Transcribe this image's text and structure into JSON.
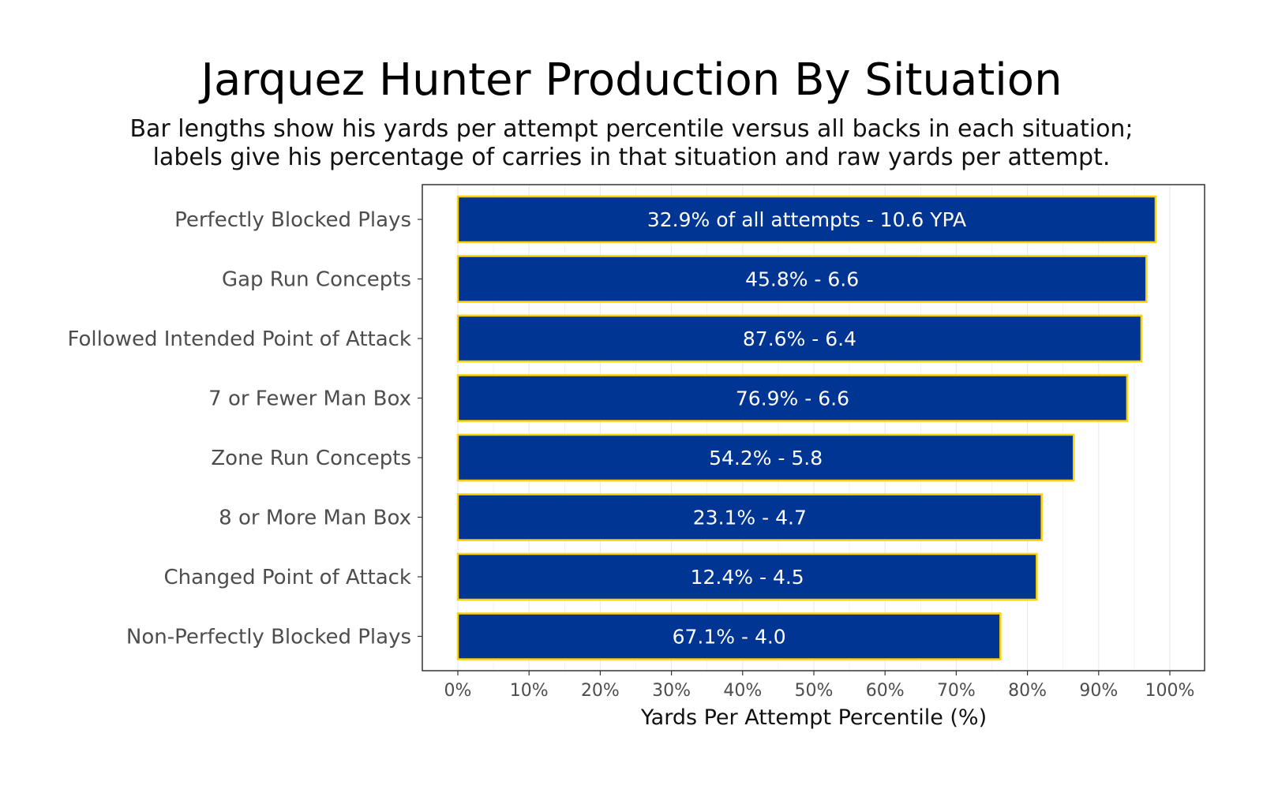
{
  "chart_data": {
    "type": "bar",
    "orientation": "horizontal",
    "title": "Jarquez Hunter Production By Situation",
    "subtitle": [
      "Bar lengths show his yards per attempt percentile versus all backs in each situation;",
      "labels give his percentage of carries in that situation and raw yards per attempt."
    ],
    "xlabel": "Yards Per Attempt Percentile (%)",
    "ylabel": "",
    "xlim": [
      0,
      100
    ],
    "x_ticks": [
      "0%",
      "10%",
      "20%",
      "30%",
      "40%",
      "50%",
      "60%",
      "70%",
      "80%",
      "90%",
      "100%"
    ],
    "categories": [
      "Perfectly Blocked Plays",
      "Gap Run Concepts",
      "Followed Intended Point of Attack",
      "7 or Fewer Man Box",
      "Zone Run Concepts",
      "8 or More Man Box",
      "Changed Point of Attack",
      "Non-Perfectly Blocked Plays"
    ],
    "values": [
      98,
      96.7,
      96,
      94,
      86.5,
      82,
      81.3,
      76.2
    ],
    "bar_labels": [
      "32.9% of all attempts - 10.6 YPA",
      "45.8% - 6.6",
      "87.6% - 6.4",
      "76.9% - 6.6",
      "54.2% - 5.8",
      "23.1% - 4.7",
      "12.4% - 4.5",
      "67.1% - 4.0"
    ],
    "grid": true,
    "legend": "none",
    "colors": {
      "bar_fill": "#003594",
      "bar_outline": "#FFD100",
      "grid": "#ebebeb",
      "panel_border": "#333333"
    }
  }
}
